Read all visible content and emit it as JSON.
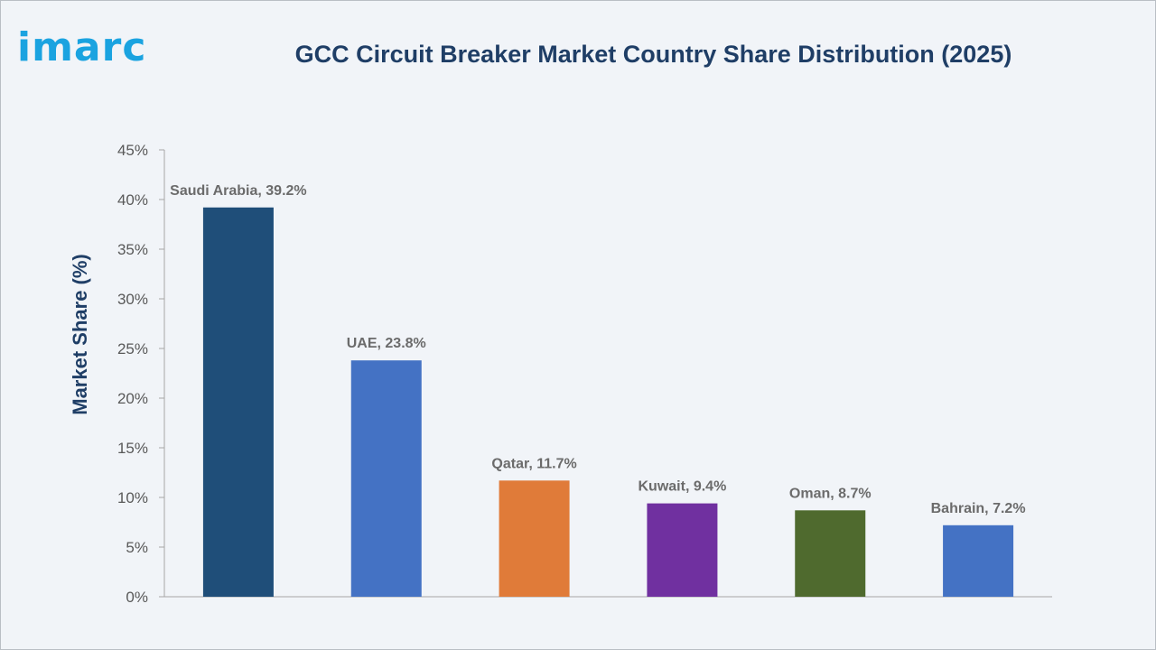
{
  "brand": {
    "logo_text": "imarc",
    "logo_color": "#1aa3e0"
  },
  "chart_data": {
    "type": "bar",
    "title": "GCC Circuit Breaker Market Country Share Distribution (2025)",
    "xlabel": "",
    "ylabel": "Market Share (%)",
    "ylim": [
      0,
      45
    ],
    "yticks": [
      0,
      5,
      10,
      15,
      20,
      25,
      30,
      35,
      40,
      45
    ],
    "ytick_labels": [
      "0%",
      "5%",
      "10%",
      "15%",
      "20%",
      "25%",
      "30%",
      "35%",
      "40%",
      "45%"
    ],
    "grid": false,
    "legend": "none",
    "categories": [
      "Saudi Arabia",
      "UAE",
      "Qatar",
      "Kuwait",
      "Oman",
      "Bahrain"
    ],
    "values": [
      39.2,
      23.8,
      11.7,
      9.4,
      8.7,
      7.2
    ],
    "data_labels": [
      "Saudi Arabia, 39.2%",
      "UAE, 23.8%",
      "Qatar, 11.7%",
      "Kuwait, 9.4%",
      "Oman, 8.7%",
      "Bahrain, 7.2%"
    ],
    "colors": [
      "#1f4e79",
      "#4472c4",
      "#e07b39",
      "#7030a0",
      "#4f6a2e",
      "#4472c4"
    ]
  }
}
